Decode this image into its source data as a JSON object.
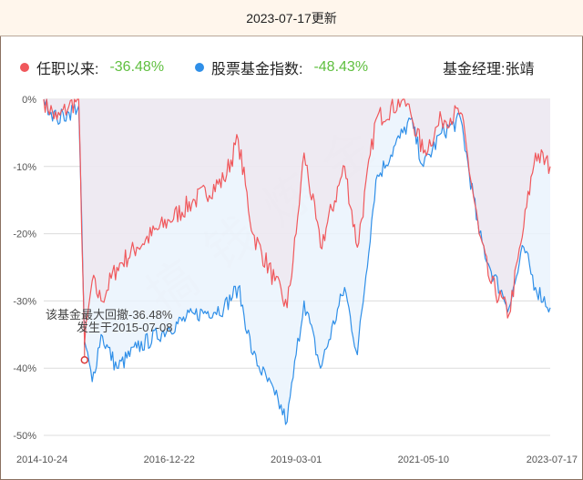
{
  "header": {
    "title": "2023-07-17更新"
  },
  "legend": {
    "series1_label": "任职以来:",
    "series1_value": "-36.48%",
    "series2_label": "股票基金指数:",
    "series2_value": "-48.43%",
    "manager": "基金经理:张靖"
  },
  "annotation": {
    "line1": "该基金最大回撤-36.48%",
    "line2": "发生于2015-07-08"
  },
  "watermark": "搞钱炼金",
  "colors": {
    "fund": "#f0585c",
    "index": "#2f8fe8",
    "fund_fill": "#eee6ee",
    "index_fill": "#eaf3fd",
    "value_green": "#5fbf3f"
  },
  "chart_data": {
    "type": "line",
    "ylim": [
      -50,
      0
    ],
    "yticks": [
      "0%",
      "-10%",
      "-20%",
      "-30%",
      "-40%",
      "-50%"
    ],
    "xticks": [
      "2014-10-24",
      "2016-12-22",
      "2019-03-01",
      "2021-05-10",
      "2023-07-17"
    ],
    "grid": true,
    "legend_position": "top",
    "x": [
      "2014-10-24",
      "2015-01-15",
      "2015-04-01",
      "2015-06-01",
      "2015-07-08",
      "2015-08-25",
      "2015-10-20",
      "2016-01-28",
      "2016-06-01",
      "2016-12-22",
      "2017-06-01",
      "2017-12-01",
      "2018-03-01",
      "2018-06-01",
      "2018-10-18",
      "2019-01-03",
      "2019-03-01",
      "2019-04-20",
      "2019-08-01",
      "2019-12-31",
      "2020-03-20",
      "2020-07-15",
      "2020-12-31",
      "2021-02-18",
      "2021-05-10",
      "2021-09-01",
      "2021-12-31",
      "2022-04-26",
      "2022-07-01",
      "2022-10-31",
      "2023-01-31",
      "2023-04-15",
      "2023-07-17"
    ],
    "series": [
      {
        "name": "任职以来",
        "values": [
          0,
          -3,
          -1,
          0,
          -36.48,
          -27,
          -30,
          -25,
          -22,
          -18,
          -15,
          -12,
          -6,
          -20,
          -27,
          -31,
          -20,
          -8,
          -22,
          -10,
          -22,
          -3,
          0,
          -2,
          -8,
          -3,
          -2,
          -20,
          -27,
          -32,
          -19,
          -8,
          -10
        ]
      },
      {
        "name": "股票基金指数",
        "values": [
          0,
          -3,
          -2,
          -1,
          -36,
          -42,
          -35,
          -40,
          -37,
          -34,
          -32,
          -31,
          -28,
          -38,
          -44,
          -48,
          -38,
          -30,
          -40,
          -28,
          -38,
          -12,
          -5,
          -3,
          -10,
          -5,
          -3,
          -20,
          -25,
          -31,
          -22,
          -28,
          -31
        ]
      }
    ]
  }
}
